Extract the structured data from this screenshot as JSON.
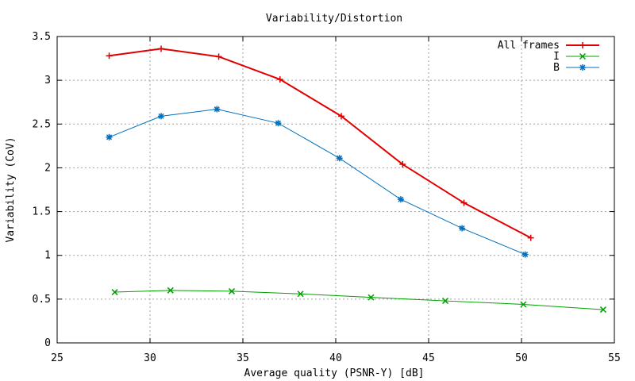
{
  "chart_data": {
    "type": "line",
    "title": "Variability/Distortion",
    "xlabel": "Average quality (PSNR-Y) [dB]",
    "ylabel": "Variability (CoV)",
    "xlim": [
      25,
      55
    ],
    "ylim": [
      0,
      3.5
    ],
    "xticks": [
      25,
      30,
      35,
      40,
      45,
      50,
      55
    ],
    "yticks": [
      0,
      0.5,
      1,
      1.5,
      2,
      2.5,
      3,
      3.5
    ],
    "xtick_labels": [
      "25",
      "30",
      "35",
      "40",
      "45",
      "50",
      "55"
    ],
    "ytick_labels": [
      "0",
      "0.5",
      "1",
      "1.5",
      "2",
      "2.5",
      "3",
      "3.5"
    ],
    "grid": true,
    "legend_position": "top-right",
    "series": [
      {
        "name": "All frames",
        "color": "#e00000",
        "marker": "plus",
        "x": [
          27.8,
          30.6,
          33.7,
          37.0,
          40.3,
          43.6,
          46.9,
          50.5
        ],
        "y": [
          3.28,
          3.36,
          3.27,
          3.01,
          2.59,
          2.04,
          1.6,
          1.2
        ]
      },
      {
        "name": "I",
        "color": "#00a000",
        "marker": "x",
        "x": [
          28.1,
          31.1,
          34.4,
          38.1,
          41.9,
          45.9,
          50.1,
          54.4
        ],
        "y": [
          0.58,
          0.6,
          0.59,
          0.56,
          0.52,
          0.48,
          0.44,
          0.38
        ]
      },
      {
        "name": "B",
        "color": "#0070c0",
        "marker": "star",
        "x": [
          27.8,
          30.6,
          33.6,
          36.9,
          40.2,
          43.5,
          46.8,
          50.2
        ],
        "y": [
          2.35,
          2.59,
          2.67,
          2.51,
          2.11,
          1.64,
          1.31,
          1.01
        ]
      }
    ]
  }
}
